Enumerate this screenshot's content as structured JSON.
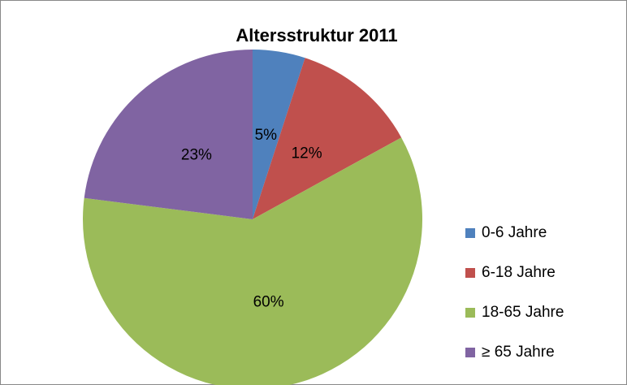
{
  "chart_data": {
    "type": "pie",
    "title": "Altersstruktur 2011",
    "categories": [
      "0-6 Jahre",
      "6-18 Jahre",
      "18-65 Jahre",
      "≥ 65 Jahre"
    ],
    "values": [
      5,
      12,
      60,
      23
    ],
    "value_labels": [
      "5%",
      "12%",
      "60%",
      "23%"
    ],
    "colors": [
      "#4f81bd",
      "#c0504d",
      "#9bbb59",
      "#8064a2"
    ],
    "legend": "right"
  }
}
